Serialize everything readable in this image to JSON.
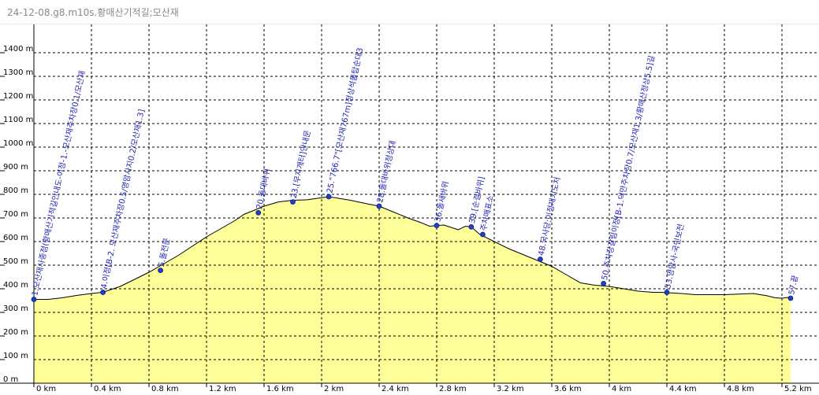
{
  "window": {
    "title": "24-12-08.g8.m10s.황매산기적길;모산재"
  },
  "colors": {
    "fill": "#ffff99",
    "outline": "#000000",
    "grid": "#000000",
    "point": "#1f3fc4",
    "label": "#1f1fb4"
  },
  "chart_data": {
    "type": "area",
    "title": "",
    "xlabel": "",
    "ylabel": "",
    "xlim": [
      0,
      5.25
    ],
    "ylim": [
      0,
      1480
    ],
    "grid": true,
    "x_ticks": [
      "0 km",
      "0.4 km",
      "0.8 km",
      "1.2 km",
      "1.6 km",
      "2 km",
      "2.4 km",
      "2.8 km",
      "3.2 km",
      "3.6 km",
      "4 km",
      "4.4 km",
      "4.8 km",
      "5.2 km"
    ],
    "y_ticks": [
      "0 m",
      "100 m",
      "200 m",
      "300 m",
      "400 m",
      "500 m",
      "600 m",
      "700 m",
      "800 m",
      "900 m",
      "1000 m",
      "1100 m",
      "1200 m",
      "1300 m",
      "1400 m"
    ],
    "series": [
      {
        "x": [
          0,
          0.1,
          0.2,
          0.3,
          0.4,
          0.48,
          0.6,
          0.7,
          0.8,
          0.9,
          1.0,
          1.1,
          1.2,
          1.3,
          1.4,
          1.46,
          1.52,
          1.6,
          1.7,
          1.8,
          1.9,
          2.0,
          2.05,
          2.1,
          2.2,
          2.3,
          2.4,
          2.5,
          2.6,
          2.7,
          2.75,
          2.8,
          2.85,
          2.9,
          2.95,
          3.0,
          3.04,
          3.1,
          3.2,
          3.3,
          3.4,
          3.5,
          3.6,
          3.7,
          3.8,
          3.9,
          4.0,
          4.1,
          4.2,
          4.3,
          4.36,
          4.5,
          4.6,
          4.8,
          5.0,
          5.1,
          5.15,
          5.2,
          5.26
        ],
        "y": [
          355,
          355,
          362,
          372,
          380,
          385,
          410,
          440,
          470,
          505,
          540,
          580,
          620,
          655,
          690,
          715,
          730,
          750,
          768,
          775,
          777,
          786,
          790,
          785,
          775,
          762,
          750,
          725,
          700,
          678,
          665,
          668,
          670,
          660,
          650,
          665,
          662,
          630,
          600,
          570,
          545,
          520,
          495,
          460,
          425,
          415,
          410,
          400,
          390,
          385,
          385,
          380,
          375,
          375,
          380,
          370,
          362,
          360,
          365
        ]
      }
    ],
    "waypoints": [
      {
        "x": 0.0,
        "y": 355,
        "label": "1.모산재사종점(황매산기적길안내도-이정-1.-모산재주차장0.1/모산재"
      },
      {
        "x": 0.48,
        "y": 385,
        "label": "4.이정[B-2. 모산재주차장0.5/영암사지0.2/모산재1.3]"
      },
      {
        "x": 0.88,
        "y": 478,
        "label": "5.돌전문"
      },
      {
        "x": 1.56,
        "y": 722,
        "label": "20.돌대바위"
      },
      {
        "x": 1.8,
        "y": 768,
        "label": "23.[무지개터]안내문"
      },
      {
        "x": 2.05,
        "y": 790,
        "label": "25.\"766.7\"[모산재767m]정상석돌탑순대3"
      },
      {
        "x": 2.4,
        "y": 750,
        "label": "28.돌대바위정상대"
      },
      {
        "x": 2.8,
        "y": 668,
        "label": "36.돌새바위"
      },
      {
        "x": 3.04,
        "y": 662,
        "label": "39.[순결바위]"
      },
      {
        "x": 3.12,
        "y": 630,
        "label": "주차매표소"
      },
      {
        "x": 3.52,
        "y": 525,
        "label": "48.국사당;이정재기도처"
      },
      {
        "x": 3.96,
        "y": 422,
        "label": "50.주차장갈림이정[B-1.덕만주차장0.7/모산재1.3/황매산정상5.5]길"
      },
      {
        "x": 4.4,
        "y": 385,
        "label": "53.영암사-국민보전"
      },
      {
        "x": 5.26,
        "y": 360,
        "label": "57.끝"
      }
    ]
  }
}
